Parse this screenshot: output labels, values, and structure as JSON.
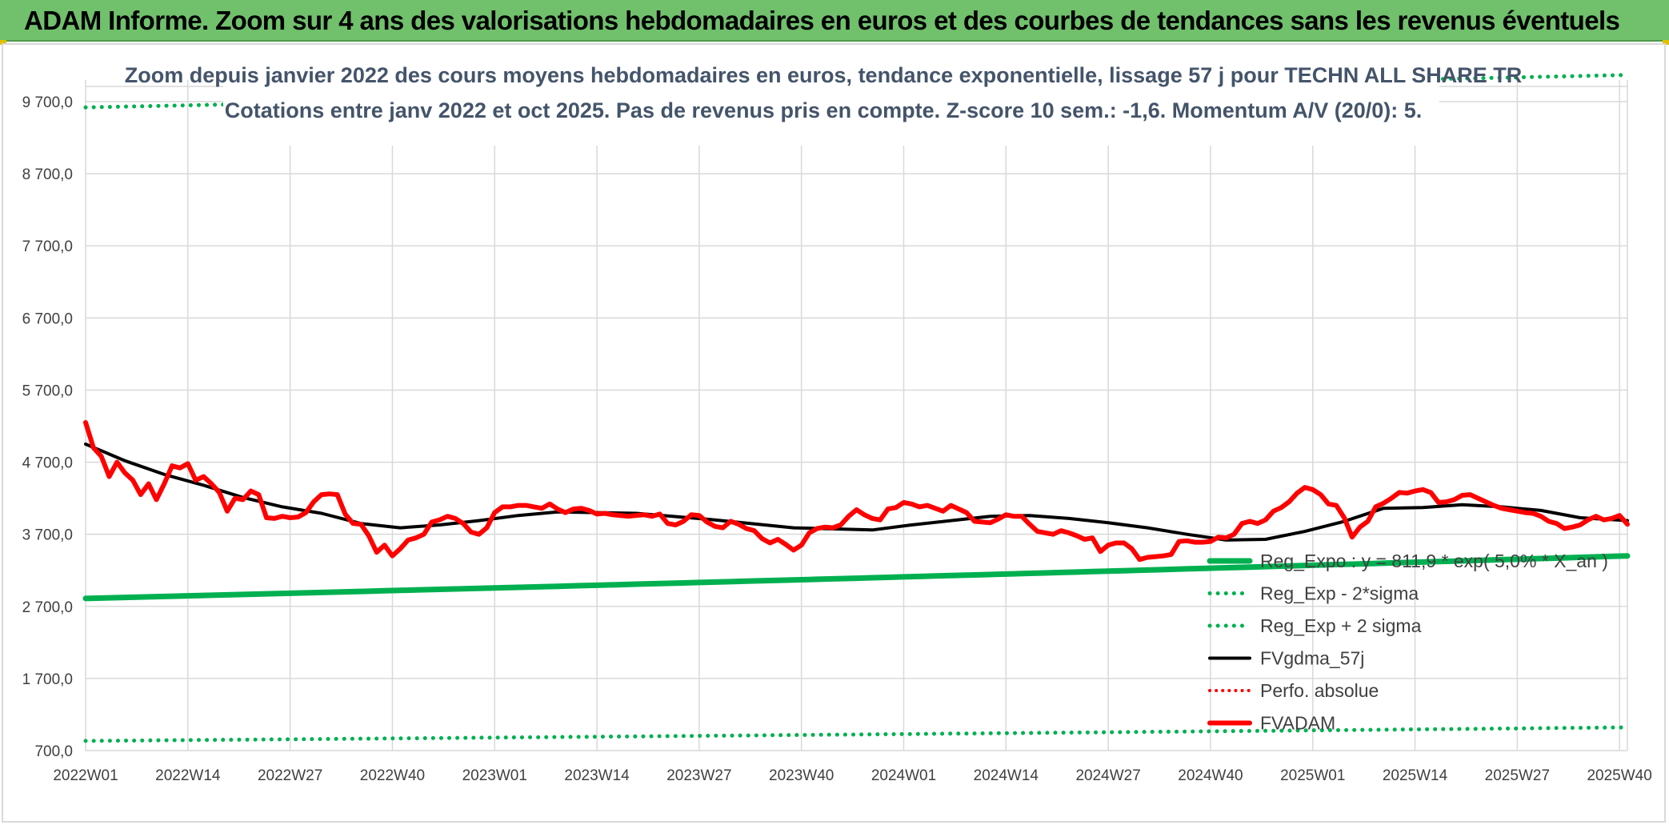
{
  "banner": {
    "title": "ADAM Informe. Zoom sur 4 ans des valorisations hebdomadaires en euros et des courbes de tendances sans les revenus éventuels"
  },
  "chart_data": {
    "type": "line",
    "title_line1": "Zoom depuis janvier 2022 des cours moyens hebdomadaires en euros, tendance exponentielle, lissage 57 j pour TECHN ALL SHARE TR",
    "title_line2": "Cotations entre janv 2022 et oct 2025. Pas de revenus pris en compte. Z-score 10 sem.: -1,6. Momentum A/V (20/0): 5.",
    "ylim": [
      700,
      10000
    ],
    "y_ticks": [
      "9 700,0",
      "8 700,0",
      "7 700,0",
      "6 700,0",
      "5 700,0",
      "4 700,0",
      "3 700,0",
      "2 700,0",
      "1 700,0",
      "700,0"
    ],
    "y_tick_values": [
      9700,
      8700,
      7700,
      6700,
      5700,
      4700,
      3700,
      2700,
      1700,
      700
    ],
    "x_ticks": [
      "2022W01",
      "2022W14",
      "2022W27",
      "2022W40",
      "2023W01",
      "2023W14",
      "2023W27",
      "2023W40",
      "2024W01",
      "2024W14",
      "2024W27",
      "2024W40",
      "2025W01",
      "2025W14",
      "2025W27",
      "2025W40"
    ],
    "n_weeks": 197,
    "series": [
      {
        "name": "Reg_Expo : y = 811,9 * exp( 5,0% * X_an )",
        "style": "solid",
        "color": "#00b050",
        "x": [
          0,
          196
        ],
        "values": [
          2810,
          3400
        ]
      },
      {
        "name": "Reg_Exp - 2*sigma",
        "style": "dotted",
        "color": "#00b050",
        "x": [
          0,
          196
        ],
        "values": [
          834,
          1022
        ]
      },
      {
        "name": "Reg_Exp + 2 sigma",
        "style": "dotted",
        "color": "#00b050",
        "x": [
          0,
          196
        ],
        "values": [
          9620,
          10070
        ]
      },
      {
        "name": "FVgdma_57j",
        "style": "solid",
        "color": "#000000",
        "x": [
          0,
          5,
          10,
          15,
          20,
          25,
          30,
          35,
          40,
          45,
          50,
          55,
          60,
          65,
          70,
          80,
          90,
          100,
          105,
          110,
          115,
          120,
          125,
          130,
          135,
          140,
          145,
          150,
          155,
          160,
          165,
          170,
          175,
          180,
          185,
          190,
          196
        ],
        "values": [
          4950,
          4720,
          4530,
          4380,
          4210,
          4080,
          3990,
          3850,
          3790,
          3830,
          3890,
          3960,
          4010,
          4000,
          3990,
          3900,
          3790,
          3760,
          3830,
          3890,
          3950,
          3960,
          3920,
          3860,
          3790,
          3700,
          3620,
          3630,
          3740,
          3880,
          4060,
          4070,
          4110,
          4080,
          4030,
          3930,
          3890
        ]
      },
      {
        "name": "Perfo. absolue",
        "style": "dotted",
        "color": "#ff0000",
        "x": [],
        "values": []
      },
      {
        "name": "FVADAM",
        "style": "solid",
        "color": "#ff0000",
        "x": [
          0,
          1,
          2,
          3,
          4,
          5,
          6,
          7,
          8,
          9,
          10,
          11,
          12,
          13,
          14,
          15,
          16,
          17,
          18,
          19,
          20,
          21,
          22,
          23,
          24,
          25,
          26,
          27,
          28,
          29,
          30,
          31,
          32,
          33,
          34,
          35,
          36,
          37,
          38,
          39,
          40,
          41,
          42,
          43,
          44,
          45,
          46,
          47,
          48,
          49,
          50,
          51,
          52,
          53,
          54,
          55,
          56,
          57,
          58,
          59,
          60,
          61,
          62,
          63,
          64,
          65,
          66,
          67,
          68,
          69,
          70,
          71,
          72,
          73,
          74,
          75,
          76,
          77,
          78,
          79,
          80,
          81,
          82,
          83,
          84,
          85,
          86,
          87,
          88,
          89,
          90,
          91,
          92,
          93,
          94,
          95,
          96,
          97,
          98,
          99,
          100,
          101,
          102,
          103,
          104,
          105,
          106,
          107,
          108,
          109,
          110,
          111,
          112,
          113,
          114,
          115,
          116,
          117,
          118,
          119,
          120,
          121,
          122,
          123,
          124,
          125,
          126,
          127,
          128,
          129,
          130,
          131,
          132,
          133,
          134,
          135,
          136,
          137,
          138,
          139,
          140,
          141,
          142,
          143,
          144,
          145,
          146,
          147,
          148,
          149,
          150,
          151,
          152,
          153,
          154,
          155,
          156,
          157,
          158,
          159,
          160,
          161,
          162,
          163,
          164,
          165,
          166,
          167,
          168,
          169,
          170,
          171,
          172,
          173,
          174,
          175,
          176,
          177,
          178,
          179,
          180,
          181,
          182,
          183,
          184,
          185,
          186,
          187,
          188,
          189,
          190,
          191,
          192,
          193,
          194,
          195,
          196
        ],
        "values": [
          5250,
          4900,
          4780,
          4500,
          4700,
          4550,
          4450,
          4250,
          4400,
          4180,
          4400,
          4650,
          4620,
          4680,
          4450,
          4500,
          4400,
          4280,
          4020,
          4200,
          4180,
          4300,
          4250,
          3930,
          3920,
          3950,
          3930,
          3940,
          4000,
          4150,
          4250,
          4260,
          4250,
          3980,
          3850,
          3840,
          3680,
          3450,
          3550,
          3400,
          3500,
          3620,
          3650,
          3700,
          3870,
          3900,
          3950,
          3920,
          3850,
          3730,
          3700,
          3790,
          4000,
          4080,
          4080,
          4100,
          4100,
          4080,
          4060,
          4120,
          4050,
          4000,
          4050,
          4060,
          4030,
          3980,
          3990,
          3970,
          3960,
          3950,
          3960,
          3970,
          3950,
          3980,
          3850,
          3830,
          3880,
          3970,
          3960,
          3870,
          3810,
          3790,
          3880,
          3840,
          3780,
          3750,
          3640,
          3580,
          3630,
          3560,
          3480,
          3550,
          3720,
          3780,
          3800,
          3790,
          3830,
          3950,
          4040,
          3970,
          3920,
          3900,
          4050,
          4070,
          4140,
          4120,
          4080,
          4100,
          4060,
          4020,
          4100,
          4050,
          4000,
          3880,
          3870,
          3860,
          3910,
          3970,
          3950,
          3950,
          3840,
          3740,
          3720,
          3700,
          3750,
          3720,
          3680,
          3630,
          3650,
          3460,
          3550,
          3580,
          3580,
          3500,
          3350,
          3380,
          3390,
          3400,
          3420,
          3600,
          3610,
          3590,
          3590,
          3600,
          3660,
          3650,
          3700,
          3850,
          3880,
          3850,
          3900,
          4020,
          4070,
          4150,
          4270,
          4350,
          4320,
          4250,
          4120,
          4100,
          3930,
          3660,
          3800,
          3880,
          4080,
          4130,
          4200,
          4280,
          4270,
          4300,
          4320,
          4280,
          4140,
          4150,
          4180,
          4240,
          4250,
          4200,
          4150,
          4100,
          4060,
          4040,
          4020,
          4000,
          3990,
          3950,
          3880,
          3850,
          3780,
          3800,
          3830,
          3900,
          3950,
          3900,
          3920,
          3960,
          3840
        ]
      }
    ],
    "legend_position": "bottom-right"
  }
}
